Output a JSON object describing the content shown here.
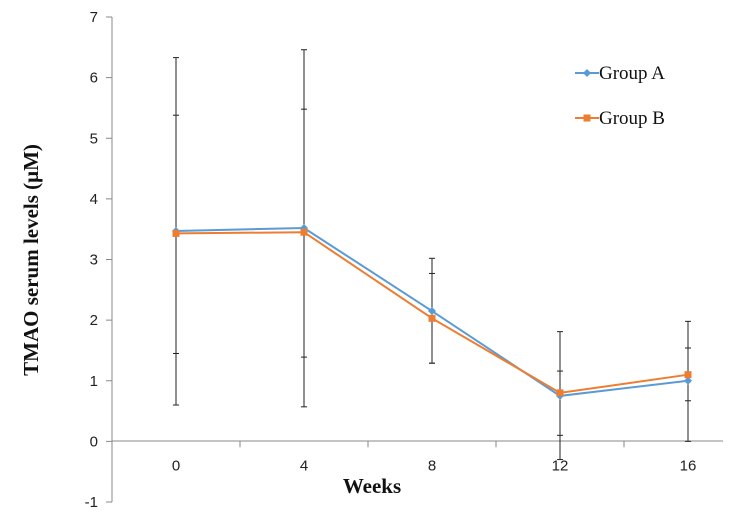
{
  "chart_data": {
    "type": "line",
    "xlabel": "Weeks",
    "ylabel": "TMAO serum levels (μM)",
    "categories": [
      "0",
      "4",
      "8",
      "12",
      "16"
    ],
    "ylim": [
      -1,
      7
    ],
    "yticks": [
      -1,
      0,
      1,
      2,
      3,
      4,
      5,
      6,
      7
    ],
    "grid": false,
    "legend_position": "top-right",
    "series": [
      {
        "name": "Group A",
        "color": "#5B9BD5",
        "marker": "diamond",
        "values": [
          3.47,
          3.52,
          2.15,
          0.75,
          1.0
        ],
        "error_low": [
          1.45,
          1.39,
          1.29,
          -0.3,
          0.0
        ],
        "error_high": [
          6.33,
          6.46,
          3.02,
          1.81,
          1.98
        ]
      },
      {
        "name": "Group B",
        "color": "#ED7D31",
        "marker": "square",
        "values": [
          3.43,
          3.45,
          2.03,
          0.8,
          1.1
        ],
        "error_low": [
          0.6,
          0.57,
          1.29,
          0.1,
          0.67
        ],
        "error_high": [
          5.38,
          5.48,
          2.77,
          1.16,
          1.54
        ]
      }
    ]
  }
}
